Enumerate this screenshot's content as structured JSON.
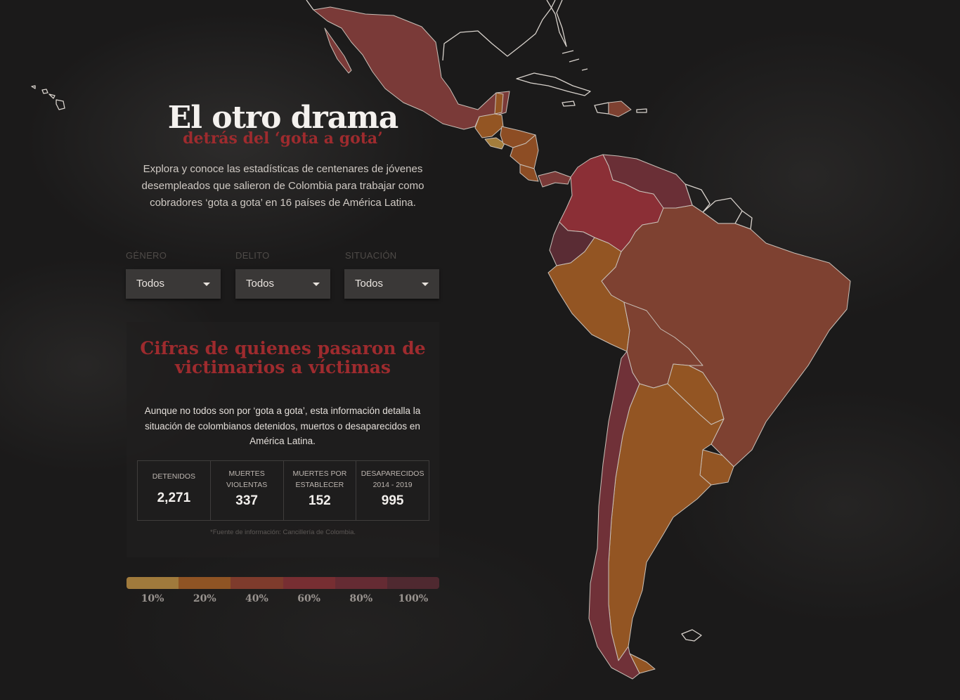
{
  "header": {
    "title": "El otro drama",
    "subtitle": "detrás del ‘gota a gota’",
    "intro": "Explora y conoce las estadísticas de centenares de jóvenes desempleados que salieron de Colombia para trabajar como cobradores ‘gota a gota’ en 16 países de América Latina."
  },
  "filters": [
    {
      "label": "GÉNERO",
      "value": "Todos"
    },
    {
      "label": "DELITO",
      "value": "Todos"
    },
    {
      "label": "SITUACIÓN",
      "value": "Todos"
    }
  ],
  "panel": {
    "title": "Cifras de quienes pasaron de victimarios a víctimas",
    "text": "Aunque no todos son por ‘gota a gota’, esta información detalla la situación de colombianos detenidos, muertos o desaparecidos en América Latina.",
    "stats": [
      {
        "label": "DETENIDOS",
        "value": "2,271"
      },
      {
        "label": "MUERTES VIOLENTAS",
        "value": "337"
      },
      {
        "label": "MUERTES POR ESTABLECER",
        "value": "152"
      },
      {
        "label": "DESAPARECIDOS 2014 - 2019",
        "value": "995"
      }
    ],
    "source": "*Fuente de información: Cancillería de Colombia."
  },
  "legend": {
    "items": [
      {
        "label": "10%",
        "color": "#a07a3c"
      },
      {
        "label": "20%",
        "color": "#8f5424"
      },
      {
        "label": "40%",
        "color": "#7e3b2c"
      },
      {
        "label": "60%",
        "color": "#772e32"
      },
      {
        "label": "80%",
        "color": "#652b33"
      },
      {
        "label": "100%",
        "color": "#4f2930"
      }
    ]
  },
  "map": {
    "colors": {
      "mexico": "#7a3a38",
      "guatemala": "#935523",
      "belize": "#935523",
      "el_salvador": "#a37d3c",
      "honduras": "#8d4d24",
      "nicaragua": "#8d4d24",
      "costa_rica": "#8d4d24",
      "panama": "#7a3a38",
      "colombia": "#8b2f36",
      "venezuela": "#6a2f36",
      "ecuador": "#5a2c34",
      "peru": "#935523",
      "brazil": "#7e4131",
      "bolivia": "#7e4131",
      "paraguay": "#935523",
      "chile": "#703138",
      "argentina": "#935523",
      "uruguay": "#935523",
      "dominican_republic": "#7e4131"
    }
  }
}
